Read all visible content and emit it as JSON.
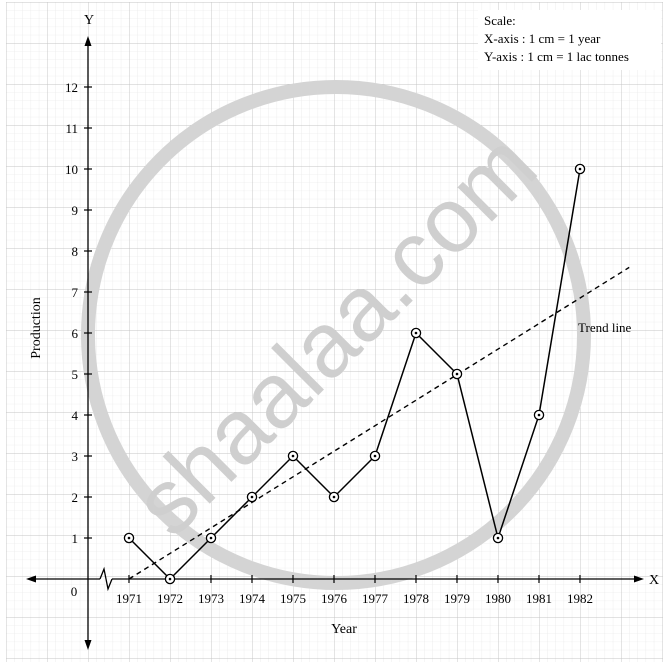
{
  "chart_data": {
    "type": "line",
    "categories": [
      "1971",
      "1972",
      "1973",
      "1974",
      "1975",
      "1976",
      "1977",
      "1978",
      "1979",
      "1980",
      "1981",
      "1982"
    ],
    "series": [
      {
        "values": [
          1,
          0,
          1,
          2,
          3,
          2,
          3,
          6,
          5,
          1,
          4,
          10
        ]
      }
    ],
    "trend_line": {
      "label": "Trend line",
      "from": [
        1971,
        0
      ],
      "to": [
        1983.2,
        7.6
      ]
    },
    "xlabel": "Year",
    "ylabel": "Production",
    "x_axis_letter": "X",
    "y_axis_letter": "Y",
    "origin_label": "0",
    "y_ticks": [
      "1",
      "2",
      "3",
      "4",
      "5",
      "6",
      "7",
      "8",
      "9",
      "10",
      "11",
      "12"
    ],
    "ylim": [
      0,
      12
    ],
    "grid": true,
    "scale_note": {
      "title": "Scale:",
      "x": "X-axis : 1 cm = 1 year",
      "y": "Y-axis : 1 cm = 1 lac tonnes"
    },
    "watermark": "shaalaa.com",
    "colors": {
      "line": "#000000",
      "grid_minor": "#e3e3e3",
      "grid_major": "#c4c4c4",
      "watermark": "#cfcfcf"
    }
  }
}
